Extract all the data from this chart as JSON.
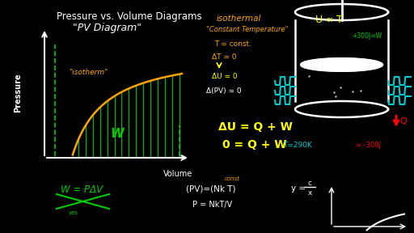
{
  "bg_color": "#000000",
  "title_text": "Pressure vs. Volume Diagrams",
  "subtitle_text": "\"PV Diagram\"",
  "title_color": "#ffffff",
  "pressure_label": "Pressure",
  "volume_label": "Volume",
  "axis_color": "#ffffff",
  "isotherm_label_color": "#ffa500",
  "isothermal_color": "#ffa500",
  "dT_color": "#ffa500",
  "dU_color": "#ffff00",
  "dPV_color": "#ffffff",
  "UT_color": "#ffff00",
  "W_eq_color": "#00cc00",
  "PV_nkT_color": "#ffffff",
  "y_cx_color": "#ffffff",
  "T290_color": "#00cccc",
  "Q_label_color": "#ff0000",
  "plus300_color": "#00cc00",
  "minus300_color": "#ff0000",
  "const_color": "#ffa500",
  "green": "#00cc00",
  "orange": "#ffa500",
  "yellow": "#ffff00",
  "cyan": "#00cccc",
  "white": "#ffffff",
  "red": "#ff0000"
}
